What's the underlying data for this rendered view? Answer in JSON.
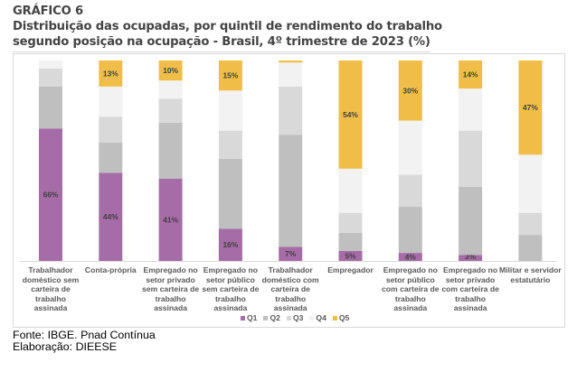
{
  "header": {
    "chart_number": "GRÁFICO 6",
    "title_line1": "Distribuição das ocupadas, por quintil de rendimento do trabalho",
    "title_line2": "segundo posição na ocupação - Brasil, 4º trimestre de 2023 (%)"
  },
  "footer": {
    "source": "Fonte: IBGE. Pnad Contínua",
    "elaboration": "Elaboração: DIEESE"
  },
  "chart_data": {
    "type": "bar",
    "stacked": true,
    "percent_stacked": true,
    "title": "Distribuição das ocupadas, por quintil de rendimento do trabalho segundo posição na ocupação - Brasil, 4º trimestre de 2023 (%)",
    "xlabel": "",
    "ylabel": "",
    "ylim": [
      0,
      100
    ],
    "grid": false,
    "legend_position": "bottom",
    "categories": [
      [
        "Trabalhador",
        "doméstico sem",
        "carteira de",
        "trabalho",
        "assinada"
      ],
      [
        "Conta-própria"
      ],
      [
        "Empregado no",
        "setor privado",
        "sem carteira de",
        "trabalho",
        "assinada"
      ],
      [
        "Empregado no",
        "setor público",
        "sem carteira de",
        "trabalho",
        "assinada"
      ],
      [
        "Trabalhador",
        "doméstico com",
        "carteira de",
        "trabalho",
        "assinada"
      ],
      [
        "Empregador"
      ],
      [
        "Empregado no",
        "setor público",
        "com carteira de",
        "trabalho",
        "assinada"
      ],
      [
        "Empregado no",
        "setor privado",
        "com carteira de",
        "trabalho",
        "assinada"
      ],
      [
        "Militar e servidor",
        "estatutário"
      ]
    ],
    "series": [
      {
        "name": "Q1",
        "color": "#A66CA7",
        "values": [
          66,
          44,
          41,
          16,
          7,
          5,
          4,
          3,
          0
        ],
        "labeled": true
      },
      {
        "name": "Q2",
        "color": "#BFBFBF",
        "values": [
          21,
          15,
          28,
          35,
          56,
          9,
          23,
          34,
          13
        ],
        "labeled": false
      },
      {
        "name": "Q3",
        "color": "#D9D9D9",
        "values": [
          9,
          13,
          12,
          14,
          24,
          10,
          16,
          28,
          11
        ],
        "labeled": false
      },
      {
        "name": "Q4",
        "color": "#F2F2F2",
        "values": [
          4,
          15,
          9,
          20,
          12,
          22,
          27,
          21,
          29
        ],
        "labeled": false
      },
      {
        "name": "Q5",
        "color": "#F0BE48",
        "values": [
          0,
          13,
          10,
          15,
          1,
          54,
          30,
          14,
          47
        ],
        "labeled": true
      }
    ],
    "data_labels": {
      "Q1": [
        "66%",
        "44%",
        "41%",
        "16%",
        "7%",
        "5%",
        "4%",
        "3%",
        "0%"
      ],
      "Q5": [
        "",
        "13%",
        "10%",
        "15%",
        "",
        "54%",
        "30%",
        "14%",
        "47%"
      ]
    }
  }
}
